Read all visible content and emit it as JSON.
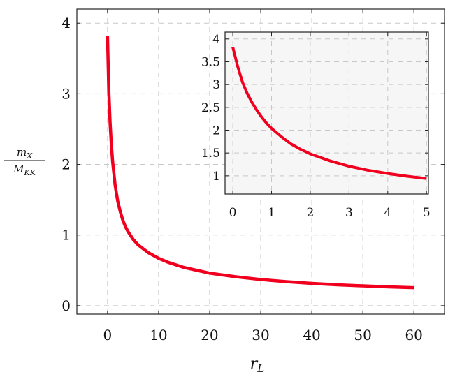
{
  "chart_data": [
    {
      "type": "line",
      "xlabel": "r_L",
      "ylabel": "m_X / M_KK",
      "xlim": [
        -6,
        66
      ],
      "ylim": [
        -0.12,
        4.2
      ],
      "x_ticks": [
        0,
        10,
        20,
        30,
        40,
        50,
        60
      ],
      "y_ticks": [
        0,
        1,
        2,
        3,
        4
      ],
      "grid": true,
      "series": [
        {
          "color": "#f0001e",
          "x": [
            0,
            0.25,
            0.5,
            0.75,
            1,
            1.5,
            2,
            2.5,
            3,
            3.5,
            4,
            5,
            6,
            8,
            10,
            12,
            15,
            20,
            25,
            30,
            35,
            40,
            45,
            50,
            55,
            60
          ],
          "y": [
            3.82,
            3.05,
            2.6,
            2.28,
            2.04,
            1.7,
            1.48,
            1.33,
            1.21,
            1.12,
            1.05,
            0.94,
            0.86,
            0.75,
            0.67,
            0.61,
            0.54,
            0.46,
            0.41,
            0.37,
            0.34,
            0.315,
            0.295,
            0.28,
            0.265,
            0.255
          ]
        }
      ]
    },
    {
      "type": "line",
      "xlim": [
        -0.2,
        5.05
      ],
      "ylim": [
        0.6,
        4.15
      ],
      "x_ticks": [
        0,
        1,
        2,
        3,
        4,
        5
      ],
      "y_ticks": [
        1,
        1.5,
        2,
        2.5,
        3,
        3.5,
        4
      ],
      "y_tick_labels": [
        "1",
        "1.5",
        "2",
        "2.5",
        "3",
        "3.5",
        "4"
      ],
      "grid": true,
      "background": "#f6f6f6",
      "series": [
        {
          "color": "#f0001e",
          "x": [
            0,
            0.125,
            0.25,
            0.375,
            0.5,
            0.625,
            0.75,
            0.875,
            1,
            1.25,
            1.5,
            1.75,
            2,
            2.5,
            3,
            3.5,
            4,
            4.5,
            5
          ],
          "y": [
            3.82,
            3.4,
            3.05,
            2.8,
            2.6,
            2.43,
            2.28,
            2.15,
            2.04,
            1.86,
            1.7,
            1.58,
            1.48,
            1.33,
            1.21,
            1.12,
            1.05,
            0.99,
            0.94
          ]
        }
      ]
    }
  ]
}
